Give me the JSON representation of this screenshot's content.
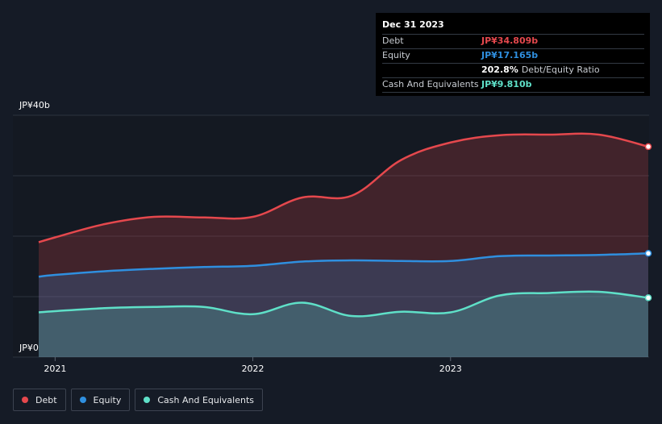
{
  "chart_data": {
    "type": "area",
    "title": "",
    "xlabel": "",
    "ylabel": "",
    "x": [
      2020.917,
      2021.0,
      2021.25,
      2021.5,
      2021.75,
      2022.0,
      2022.25,
      2022.5,
      2022.75,
      2023.0,
      2023.25,
      2023.5,
      2023.75,
      2024.0
    ],
    "xlim": [
      2020.917,
      2024.0
    ],
    "ylim": [
      0,
      40
    ],
    "y_tick_labels": [
      {
        "value": 40,
        "label": "JP¥40b"
      },
      {
        "value": 0,
        "label": "JP¥0"
      }
    ],
    "x_tick_labels": [
      {
        "value": 2021.0,
        "label": "2021"
      },
      {
        "value": 2022.0,
        "label": "2022"
      },
      {
        "value": 2023.0,
        "label": "2023"
      }
    ],
    "gridlines": [
      0,
      10,
      20,
      30,
      40
    ],
    "series": [
      {
        "name": "Debt",
        "color": "#e5484d",
        "values": [
          19.0,
          19.8,
          22.0,
          23.2,
          23.1,
          23.2,
          26.4,
          26.7,
          32.6,
          35.5,
          36.7,
          36.8,
          36.8,
          34.809
        ]
      },
      {
        "name": "Equity",
        "color": "#2f8fdf",
        "values": [
          13.3,
          13.6,
          14.2,
          14.6,
          14.9,
          15.1,
          15.8,
          16.0,
          15.9,
          15.9,
          16.7,
          16.8,
          16.9,
          17.165
        ]
      },
      {
        "name": "Cash And Equivalents",
        "color": "#5fe0c8",
        "values": [
          7.4,
          7.6,
          8.1,
          8.3,
          8.3,
          7.1,
          9.0,
          6.8,
          7.5,
          7.4,
          10.2,
          10.6,
          10.8,
          9.81
        ]
      }
    ]
  },
  "tooltip": {
    "date": "Dec 31 2023",
    "rows": [
      {
        "label": "Debt",
        "value": "JP¥34.809b",
        "color": "#e5484d"
      },
      {
        "label": "Equity",
        "value": "JP¥17.165b",
        "color": "#2f8fdf"
      },
      {
        "label": "",
        "value": "202.8%",
        "color": "#ffffff",
        "extra": "Debt/Equity Ratio"
      },
      {
        "label": "Cash And Equivalents",
        "value": "JP¥9.810b",
        "color": "#5fe0c8"
      }
    ]
  },
  "legend": [
    {
      "label": "Debt",
      "color": "#e5484d"
    },
    {
      "label": "Equity",
      "color": "#2f8fdf"
    },
    {
      "label": "Cash And Equivalents",
      "color": "#5fe0c8"
    }
  ]
}
